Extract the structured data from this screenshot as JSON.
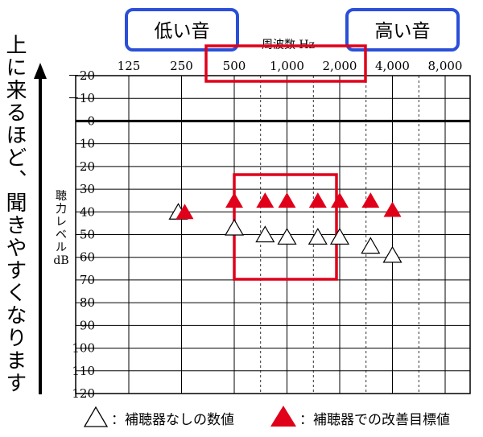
{
  "side_text": "上に来るほど、聞きやすくなります",
  "header": {
    "low_label": "低い音",
    "high_label": "高い音",
    "frequency_label": "周波数 Hz"
  },
  "y_label_lines": [
    "聴",
    "力",
    "レ",
    "ベ",
    "ル",
    "dB"
  ],
  "legend": {
    "without_aid": "：補聴器なしの数値",
    "with_aid": "：補聴器での改善目標値"
  },
  "colors": {
    "accent_red": "#e0001a",
    "box_blue": "#2a4fd8",
    "grid": "#000000"
  },
  "chart_data": {
    "type": "scatter",
    "title": "",
    "xlabel": "周波数 Hz",
    "ylabel": "聴力レベル dB",
    "x_ticks": [
      "125",
      "250",
      "500",
      "1,000",
      "2,000",
      "4,000",
      "8,000"
    ],
    "x_scale": "log2",
    "y_ticks": [
      "－20",
      "－10",
      "0",
      "10",
      "20",
      "30",
      "40",
      "50",
      "60",
      "70",
      "80",
      "90",
      "100",
      "110",
      "120"
    ],
    "ylim": [
      -20,
      120
    ],
    "y_inverted": true,
    "grid": true,
    "series": [
      {
        "name": "補聴器なしの数値",
        "marker": "open-triangle",
        "points": [
          {
            "x": 250,
            "y": 40
          },
          {
            "x": 500,
            "y": 47
          },
          {
            "x": 750,
            "y": 50
          },
          {
            "x": 1000,
            "y": 51
          },
          {
            "x": 1500,
            "y": 51
          },
          {
            "x": 2000,
            "y": 51
          },
          {
            "x": 3000,
            "y": 55
          },
          {
            "x": 4000,
            "y": 59
          }
        ]
      },
      {
        "name": "補聴器での改善目標値",
        "marker": "filled-triangle",
        "points": [
          {
            "x": 250,
            "y": 40
          },
          {
            "x": 500,
            "y": 35
          },
          {
            "x": 750,
            "y": 35
          },
          {
            "x": 1000,
            "y": 35
          },
          {
            "x": 1500,
            "y": 35
          },
          {
            "x": 2000,
            "y": 35
          },
          {
            "x": 3000,
            "y": 35
          },
          {
            "x": 4000,
            "y": 39
          }
        ]
      }
    ]
  }
}
